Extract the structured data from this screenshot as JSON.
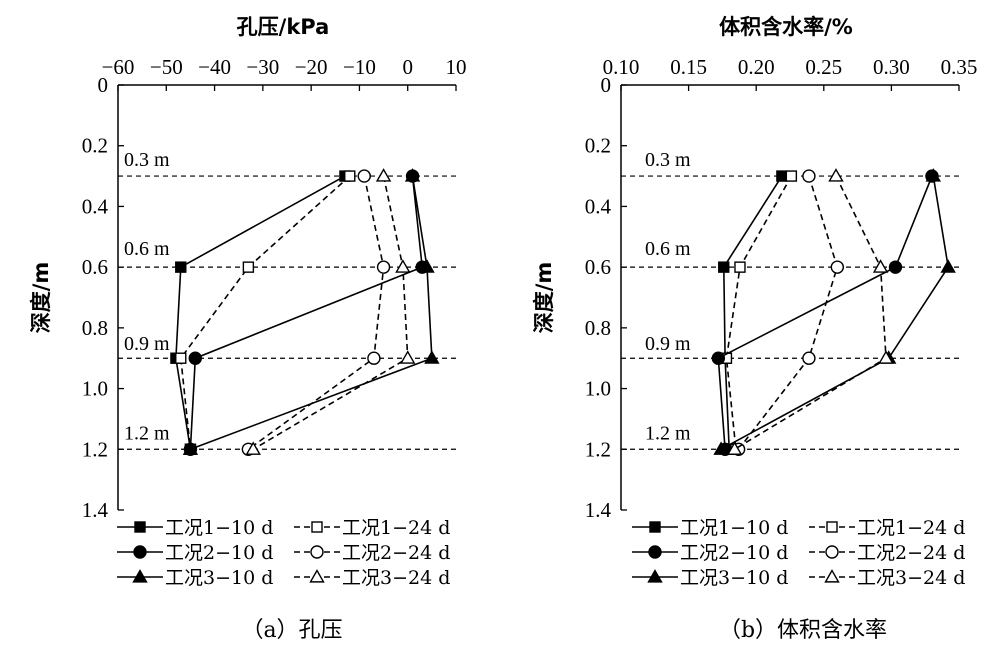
{
  "chart_data": [
    {
      "type": "line",
      "title": "孔压/kPa",
      "xlabel": "孔压/kPa",
      "ylabel": "深度/m",
      "caption": "（a）孔压",
      "xlim": [
        -60,
        10
      ],
      "ylim": [
        0,
        1.4
      ],
      "xticks": [
        "−60",
        "−50",
        "−40",
        "−30",
        "−20",
        "−10",
        "0",
        "10"
      ],
      "yticks": [
        "0",
        "0.2",
        "0.4",
        "0.6",
        "0.8",
        "1.0",
        "1.2",
        "1.4"
      ],
      "x_axis_position": "top",
      "y_axis_inverted": true,
      "depth_lines": [
        0.3,
        0.6,
        0.9,
        1.2
      ],
      "depth_labels": [
        "0.3 m",
        "0.6 m",
        "0.9 m",
        "1.2 m"
      ],
      "legend": [
        {
          "label": "工况1−10 d",
          "marker": "square",
          "filled": true,
          "dashed": false
        },
        {
          "label": "工况1−24 d",
          "marker": "square",
          "filled": false,
          "dashed": true
        },
        {
          "label": "工况2−10 d",
          "marker": "circle",
          "filled": true,
          "dashed": false
        },
        {
          "label": "工况2−24 d",
          "marker": "circle",
          "filled": false,
          "dashed": true
        },
        {
          "label": "工况3−10 d",
          "marker": "triangle",
          "filled": true,
          "dashed": false
        },
        {
          "label": "工况3−24 d",
          "marker": "triangle",
          "filled": false,
          "dashed": true
        }
      ],
      "series": [
        {
          "name": "工况1−10 d",
          "marker": "square",
          "filled": true,
          "dashed": false,
          "x": [
            -13,
            -47,
            -48,
            -45
          ],
          "y": [
            0.3,
            0.6,
            0.9,
            1.2
          ]
        },
        {
          "name": "工况1−24 d",
          "marker": "square",
          "filled": false,
          "dashed": true,
          "x": [
            -12,
            -33,
            -47,
            -45
          ],
          "y": [
            0.3,
            0.6,
            0.9,
            1.2
          ]
        },
        {
          "name": "工况2−10 d",
          "marker": "circle",
          "filled": true,
          "dashed": false,
          "x": [
            1,
            3,
            -44,
            -45
          ],
          "y": [
            0.3,
            0.6,
            0.9,
            1.2
          ]
        },
        {
          "name": "工况2−24 d",
          "marker": "circle",
          "filled": false,
          "dashed": true,
          "x": [
            -9,
            -5,
            -7,
            -33
          ],
          "y": [
            0.3,
            0.6,
            0.9,
            1.2
          ]
        },
        {
          "name": "工况3−10 d",
          "marker": "triangle",
          "filled": true,
          "dashed": false,
          "x": [
            1,
            4,
            5,
            -45
          ],
          "y": [
            0.3,
            0.6,
            0.9,
            1.2
          ]
        },
        {
          "name": "工况3−24 d",
          "marker": "triangle",
          "filled": false,
          "dashed": true,
          "x": [
            -5,
            -1,
            0,
            -32
          ],
          "y": [
            0.3,
            0.6,
            0.9,
            1.2
          ]
        }
      ]
    },
    {
      "type": "line",
      "title": "体积含水率/%",
      "xlabel": "体积含水率/%",
      "ylabel": "深度/m",
      "caption": "（b）体积含水率",
      "xlim": [
        0.1,
        0.35
      ],
      "ylim": [
        0,
        1.4
      ],
      "xticks": [
        "0.10",
        "0.15",
        "0.20",
        "0.25",
        "0.30",
        "0.35"
      ],
      "yticks": [
        "0",
        "0.2",
        "0.4",
        "0.6",
        "0.8",
        "1.0",
        "1.2",
        "1.4"
      ],
      "x_axis_position": "top",
      "y_axis_inverted": true,
      "depth_lines": [
        0.3,
        0.6,
        0.9,
        1.2
      ],
      "depth_labels": [
        "0.3 m",
        "0.6 m",
        "0.9 m",
        "1.2 m"
      ],
      "legend": [
        {
          "label": "工况1−10 d",
          "marker": "square",
          "filled": true,
          "dashed": false
        },
        {
          "label": "工况1−24 d",
          "marker": "square",
          "filled": false,
          "dashed": true
        },
        {
          "label": "工况2−10 d",
          "marker": "circle",
          "filled": true,
          "dashed": false
        },
        {
          "label": "工况2−24 d",
          "marker": "circle",
          "filled": false,
          "dashed": true
        },
        {
          "label": "工况3−10 d",
          "marker": "triangle",
          "filled": true,
          "dashed": false
        },
        {
          "label": "工况3−24 d",
          "marker": "triangle",
          "filled": false,
          "dashed": true
        }
      ],
      "series": [
        {
          "name": "工况1−10 d",
          "marker": "square",
          "filled": true,
          "dashed": false,
          "x": [
            0.219,
            0.176,
            0.177,
            0.18
          ],
          "y": [
            0.3,
            0.6,
            0.9,
            1.2
          ]
        },
        {
          "name": "工况1−24 d",
          "marker": "square",
          "filled": false,
          "dashed": true,
          "x": [
            0.226,
            0.188,
            0.178,
            0.185
          ],
          "y": [
            0.3,
            0.6,
            0.9,
            1.2
          ]
        },
        {
          "name": "工况2−10 d",
          "marker": "circle",
          "filled": true,
          "dashed": false,
          "x": [
            0.33,
            0.303,
            0.172,
            0.177
          ],
          "y": [
            0.3,
            0.6,
            0.9,
            1.2
          ]
        },
        {
          "name": "工况2−24 d",
          "marker": "circle",
          "filled": false,
          "dashed": true,
          "x": [
            0.239,
            0.26,
            0.239,
            0.187
          ],
          "y": [
            0.3,
            0.6,
            0.9,
            1.2
          ]
        },
        {
          "name": "工况3−10 d",
          "marker": "triangle",
          "filled": true,
          "dashed": false,
          "x": [
            0.331,
            0.342,
            0.298,
            0.174
          ],
          "y": [
            0.3,
            0.6,
            0.9,
            1.2
          ]
        },
        {
          "name": "工况3−24 d",
          "marker": "triangle",
          "filled": false,
          "dashed": true,
          "x": [
            0.259,
            0.292,
            0.296,
            0.184
          ],
          "y": [
            0.3,
            0.6,
            0.9,
            1.2
          ]
        }
      ]
    }
  ]
}
